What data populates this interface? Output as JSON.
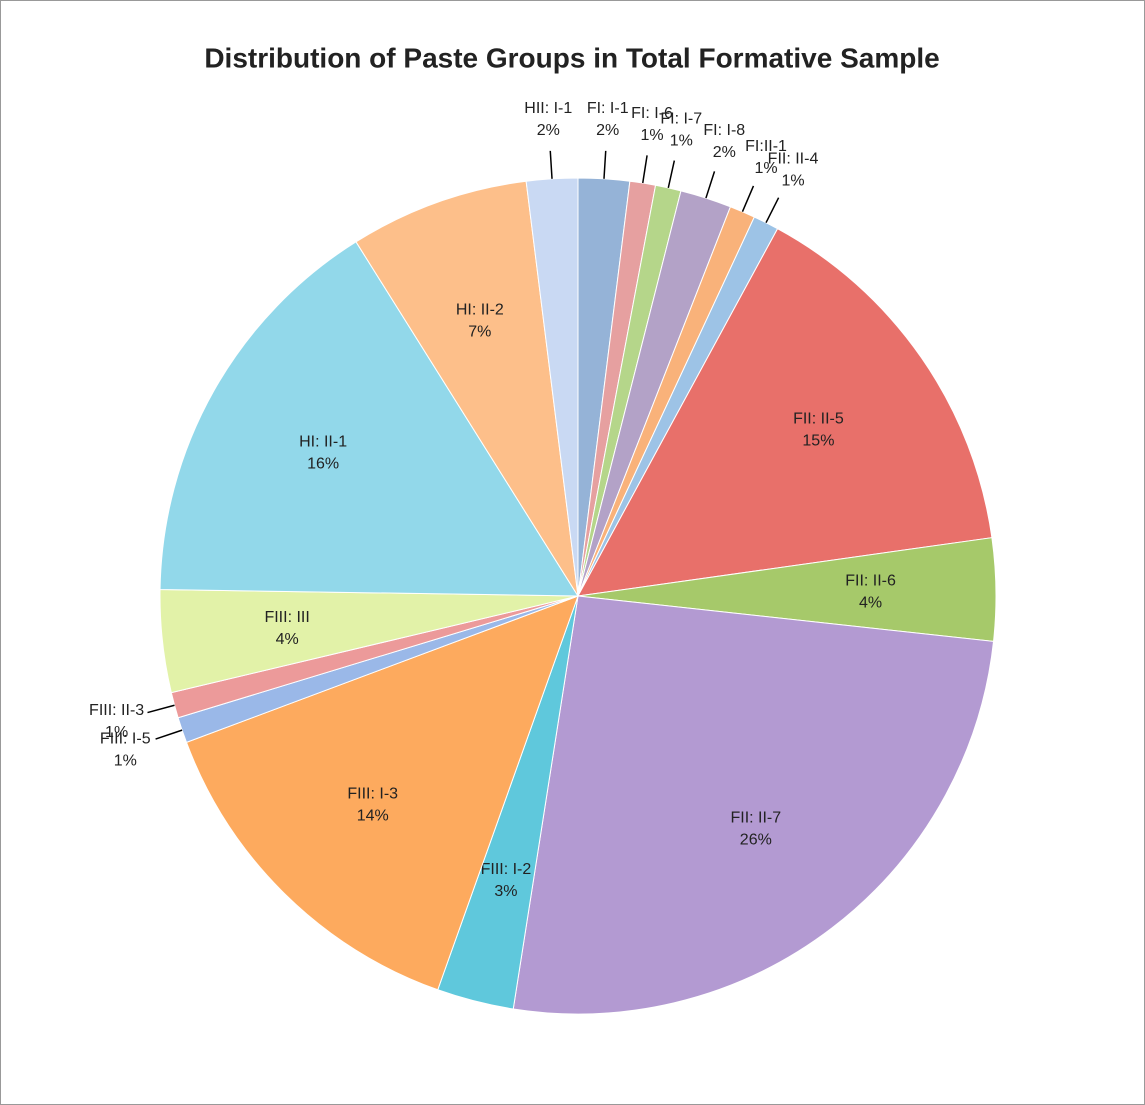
{
  "chart_data": {
    "type": "pie",
    "title": "Distribution of Paste Groups in Total Formative Sample",
    "categories": [
      "FI: I-1",
      "FI: I-6",
      "FI: I-7",
      "FI: I-8",
      "FI:II-1",
      "FII: II-4",
      "FII: II-5",
      "FII: II-6",
      "FII: II-7",
      "FIII: I-2",
      "FIII: I-3",
      "FIII: I-5",
      "FIII: II-3",
      "FIII: III",
      "HI: II-1",
      "HI: II-2",
      "HII: I-1"
    ],
    "values": [
      2,
      1,
      1,
      2,
      1,
      1,
      15,
      4,
      26,
      3,
      14,
      1,
      1,
      4,
      16,
      7,
      2
    ],
    "value_labels": [
      "2%",
      "1%",
      "1%",
      "2%",
      "1%",
      "1%",
      "15%",
      "4%",
      "26%",
      "3%",
      "14%",
      "1%",
      "1%",
      "4%",
      "16%",
      "7%",
      "2%"
    ],
    "colors": [
      "#95b3d7",
      "#e6a0a0",
      "#b5d68a",
      "#b3a2c7",
      "#f9b27a",
      "#9dc3e6",
      "#e8706a",
      "#a6c96a",
      "#b39ad2",
      "#5fc8dc",
      "#fdaa5e",
      "#9ab8e8",
      "#ec9a9a",
      "#e2f2a8",
      "#92d8ea",
      "#fdbf8a",
      "#c9d9f3"
    ]
  }
}
